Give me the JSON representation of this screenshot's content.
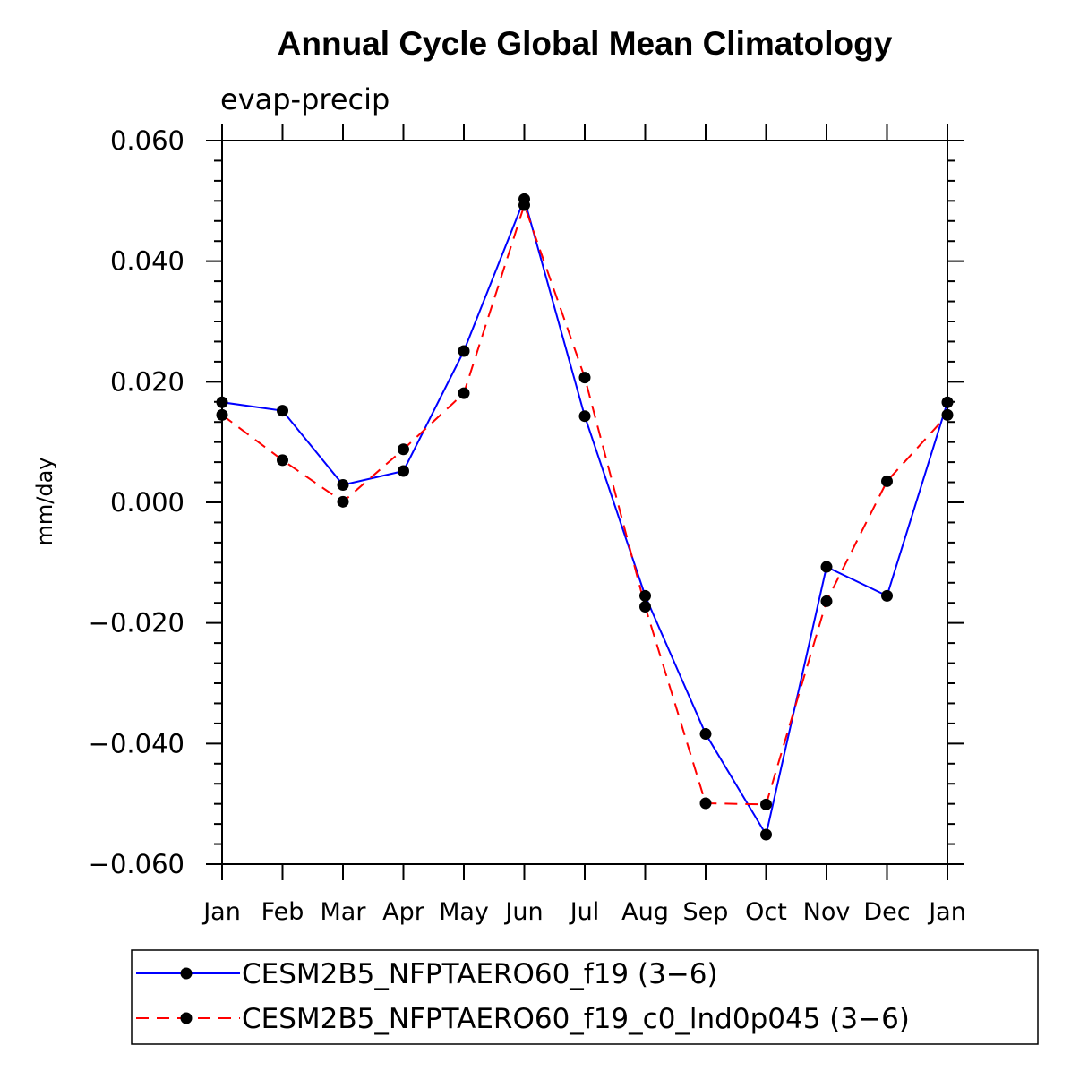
{
  "chart_data": {
    "type": "line",
    "title": "Annual Cycle Global Mean Climatology",
    "subtitle": "evap-precip",
    "xlabel": "",
    "ylabel": "mm/day",
    "categories": [
      "Jan",
      "Feb",
      "Mar",
      "Apr",
      "May",
      "Jun",
      "Jul",
      "Aug",
      "Sep",
      "Oct",
      "Nov",
      "Dec",
      "Jan"
    ],
    "ylim": [
      -0.06,
      0.06
    ],
    "yticks": [
      0.06,
      0.04,
      0.02,
      0.0,
      -0.02,
      -0.04,
      -0.06
    ],
    "ytick_labels": [
      "0.060",
      "0.040",
      "0.020",
      "0.000",
      "−0.020",
      "−0.040",
      "−0.060"
    ],
    "grid": false,
    "legend_position": "bottom",
    "series": [
      {
        "name": "CESM2B5_NFPTAERO60_f19 (3−6)",
        "color": "#0000ff",
        "dash": "solid",
        "values": [
          0.0166,
          0.0152,
          0.0029,
          0.0052,
          0.0251,
          0.0503,
          0.0143,
          -0.0155,
          -0.0384,
          -0.0551,
          -0.0107,
          -0.0155,
          0.0166
        ]
      },
      {
        "name": "CESM2B5_NFPTAERO60_f19_c0_lnd0p045 (3−6)",
        "color": "#ff0000",
        "dash": "dashed",
        "values": [
          0.0145,
          0.007,
          0.0001,
          0.0088,
          0.0181,
          0.0493,
          0.0207,
          -0.0173,
          -0.0499,
          -0.0501,
          -0.0164,
          0.0035,
          0.0145
        ]
      }
    ]
  }
}
